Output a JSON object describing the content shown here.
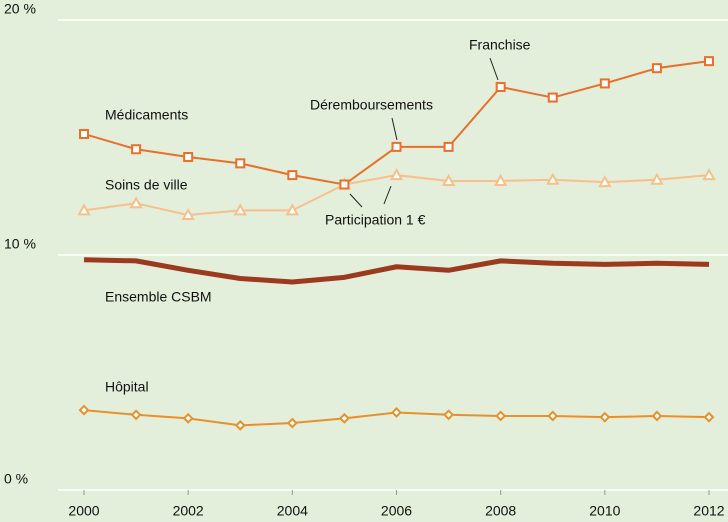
{
  "chart_data": {
    "type": "line",
    "x": [
      2000,
      2001,
      2002,
      2003,
      2004,
      2005,
      2006,
      2007,
      2008,
      2009,
      2010,
      2011,
      2012
    ],
    "xlim": [
      2000,
      2012
    ],
    "xticks": [
      2000,
      2002,
      2004,
      2006,
      2008,
      2010,
      2012
    ],
    "ylim": [
      0,
      20
    ],
    "yticks": [
      {
        "value": 0,
        "label": "0 %"
      },
      {
        "value": 10,
        "label": "10 %"
      },
      {
        "value": 20,
        "label": "20 %"
      }
    ],
    "grid": true,
    "series": [
      {
        "name": "Médicaments",
        "color": "#e8702a",
        "marker": "square",
        "line_width": 2,
        "values": [
          15.15,
          14.5,
          14.17,
          13.9,
          13.4,
          13.0,
          14.6,
          14.6,
          17.15,
          16.7,
          17.3,
          17.95,
          18.25
        ]
      },
      {
        "name": "Soins de ville",
        "color": "#f7c08a",
        "marker": "triangle",
        "line_width": 2,
        "values": [
          11.9,
          12.2,
          11.7,
          11.9,
          11.9,
          13.0,
          13.4,
          13.15,
          13.15,
          13.2,
          13.1,
          13.2,
          13.4
        ]
      },
      {
        "name": "Ensemble CSBM",
        "color": "#9b3a1e",
        "marker": null,
        "line_width": 5,
        "values": [
          9.8,
          9.75,
          9.35,
          9.0,
          8.85,
          9.05,
          9.5,
          9.35,
          9.75,
          9.65,
          9.6,
          9.65,
          9.6
        ]
      },
      {
        "name": "Hôpital",
        "color": "#e8902a",
        "marker": "diamond",
        "line_width": 2,
        "values": [
          3.4,
          3.2,
          3.05,
          2.75,
          2.85,
          3.05,
          3.3,
          3.2,
          3.15,
          3.15,
          3.1,
          3.15,
          3.1
        ]
      }
    ],
    "annotations": [
      "Déremboursements",
      "Franchise",
      "Participation 1 €"
    ]
  }
}
